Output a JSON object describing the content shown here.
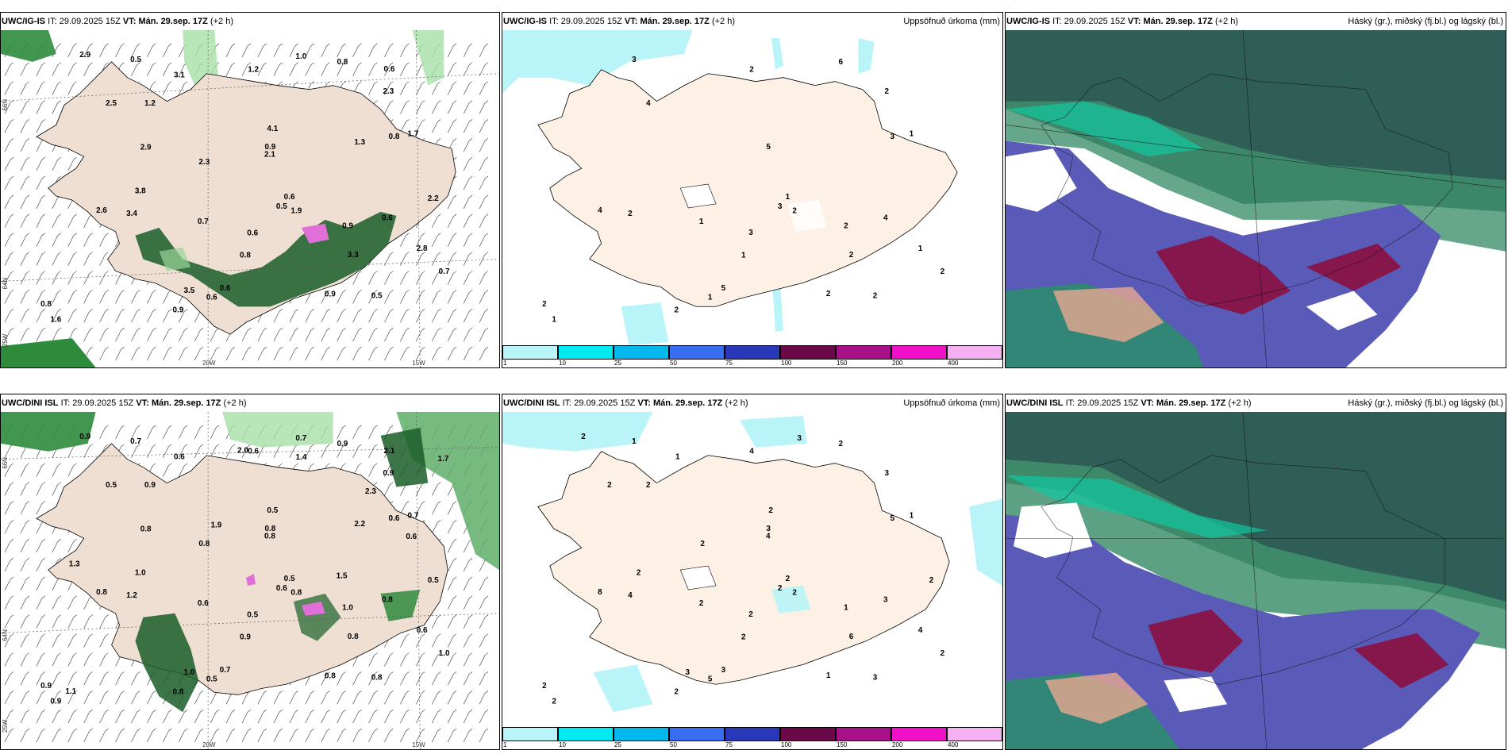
{
  "top": {
    "wind": {
      "model": "UWC/IG-IS",
      "it_label": "IT:",
      "it": "29.09.2025 15Z",
      "vt_label": "VT:",
      "vt": "Mán. 29.sep. 17Z",
      "offset": "(+2 h)"
    },
    "precip": {
      "model": "UWC/IG-IS",
      "it_label": "IT:",
      "it": "29.09.2025 15Z",
      "vt_label": "VT:",
      "vt": "Mán. 29.sep. 17Z",
      "offset": "(+2 h)",
      "right": "Uppsöfnuð úrkoma (mm)"
    },
    "cloud": {
      "model": "UWC/IG-IS",
      "it_label": "IT:",
      "it": "29.09.2025 15Z",
      "vt_label": "VT:",
      "vt": "Mán. 29.sep. 17Z",
      "offset": "(+2 h)",
      "right": "Háský (gr.), miðský (fj.bl.) og lágský (bl.)"
    }
  },
  "bottom": {
    "wind": {
      "model": "UWC/DINI ISL",
      "it_label": "IT:",
      "it": "29.09.2025 15Z",
      "vt_label": "VT:",
      "vt": "Mán. 29.sep. 17Z",
      "offset": "(+2 h)"
    },
    "precip": {
      "model": "UWC/DINI ISL",
      "it_label": "IT:",
      "it": "29.09.2025 15Z",
      "vt_label": "VT:",
      "vt": "Mán. 29.sep. 17Z",
      "offset": "(+2 h)",
      "right": "Uppsöfnuð úrkoma (mm)"
    },
    "cloud": {
      "model": "UWC/DINI ISL",
      "it_label": "IT:",
      "it": "29.09.2025 15Z",
      "vt_label": "VT:",
      "vt": "Mán. 29.sep. 17Z",
      "offset": "(+2 h)",
      "right": "Háský (gr.), miðský (fj.bl.) og lágský (bl.)"
    }
  },
  "grid_labels": {
    "lat_66": "66N",
    "lat_64": "64N",
    "lon_20": "20W",
    "lon_15": "15W",
    "lon_25": "25W",
    "lat_65": "65N"
  },
  "colorbar": {
    "ticks": [
      "1",
      "10",
      "25",
      "50",
      "75",
      "100",
      "150",
      "200",
      "400"
    ],
    "colors": [
      "#b8f4f8",
      "#00e8f0",
      "#00b8ee",
      "#3a6ef0",
      "#2838b8",
      "#6a0848",
      "#a8108a",
      "#f010c8",
      "#f4b0f0"
    ]
  },
  "top_wind_values": [
    "0.8",
    "0.9",
    "0.6",
    "1.2",
    "0.5",
    "0.9",
    "0.8",
    "1.2",
    "0.6",
    "0.8",
    "0.5",
    "0.6",
    "0.7",
    "0.6",
    "0.9",
    "0.6",
    "0.5",
    "0.7",
    "0.9",
    "0.8",
    "2.3",
    "1.6",
    "1.9",
    "2.8",
    "3.4",
    "3.3",
    "2.6",
    "1.7",
    "2.5",
    "3.1",
    "2.1",
    "3.5",
    "2.3",
    "4.1",
    "2.9",
    "1.0",
    "2.2",
    "3.8",
    "2.9",
    "1.3",
    "0.6"
  ],
  "top_precip_values": [
    "6",
    "5",
    "5",
    "4",
    "2",
    "2",
    "1",
    "2",
    "3",
    "2",
    "3",
    "1",
    "1",
    "4",
    "2",
    "1",
    "3",
    "2",
    "2",
    "3",
    "2",
    "1",
    "2",
    "1",
    "2",
    "2",
    "4",
    "1"
  ],
  "bottom_wind_values": [
    "0.9",
    "0.8",
    "0.7",
    "0.9",
    "0.8",
    "1.0",
    "0.9",
    "0.6",
    "0.5",
    "0.9",
    "0.6",
    "0.5",
    "0.6",
    "0.8",
    "0.8",
    "0.5",
    "0.7",
    "1.0",
    "0.8",
    "0.6",
    "0.9",
    "0.9",
    "0.8",
    "0.6",
    "1.2",
    "0.8",
    "0.8",
    "0.7",
    "0.5",
    "0.6",
    "0.8",
    "1.0",
    "0.8",
    "0.5",
    "0.9",
    "0.7",
    "0.5",
    "1.0",
    "0.8",
    "2.2",
    "2.1",
    "1.4",
    "1.1",
    "2.0",
    "2.3",
    "1.5",
    "1.3",
    "1.9",
    "1.7",
    "0.6"
  ],
  "bottom_precip_values": [
    "2",
    "3",
    "3",
    "2",
    "3",
    "1",
    "2",
    "4",
    "2",
    "2",
    "2",
    "2",
    "2",
    "3",
    "2",
    "5",
    "1",
    "2",
    "1",
    "5",
    "3",
    "2",
    "2",
    "4",
    "4",
    "6",
    "8",
    "1",
    "2",
    "1",
    "4",
    "3",
    "2",
    "2",
    "2",
    "3",
    "2",
    "2"
  ]
}
